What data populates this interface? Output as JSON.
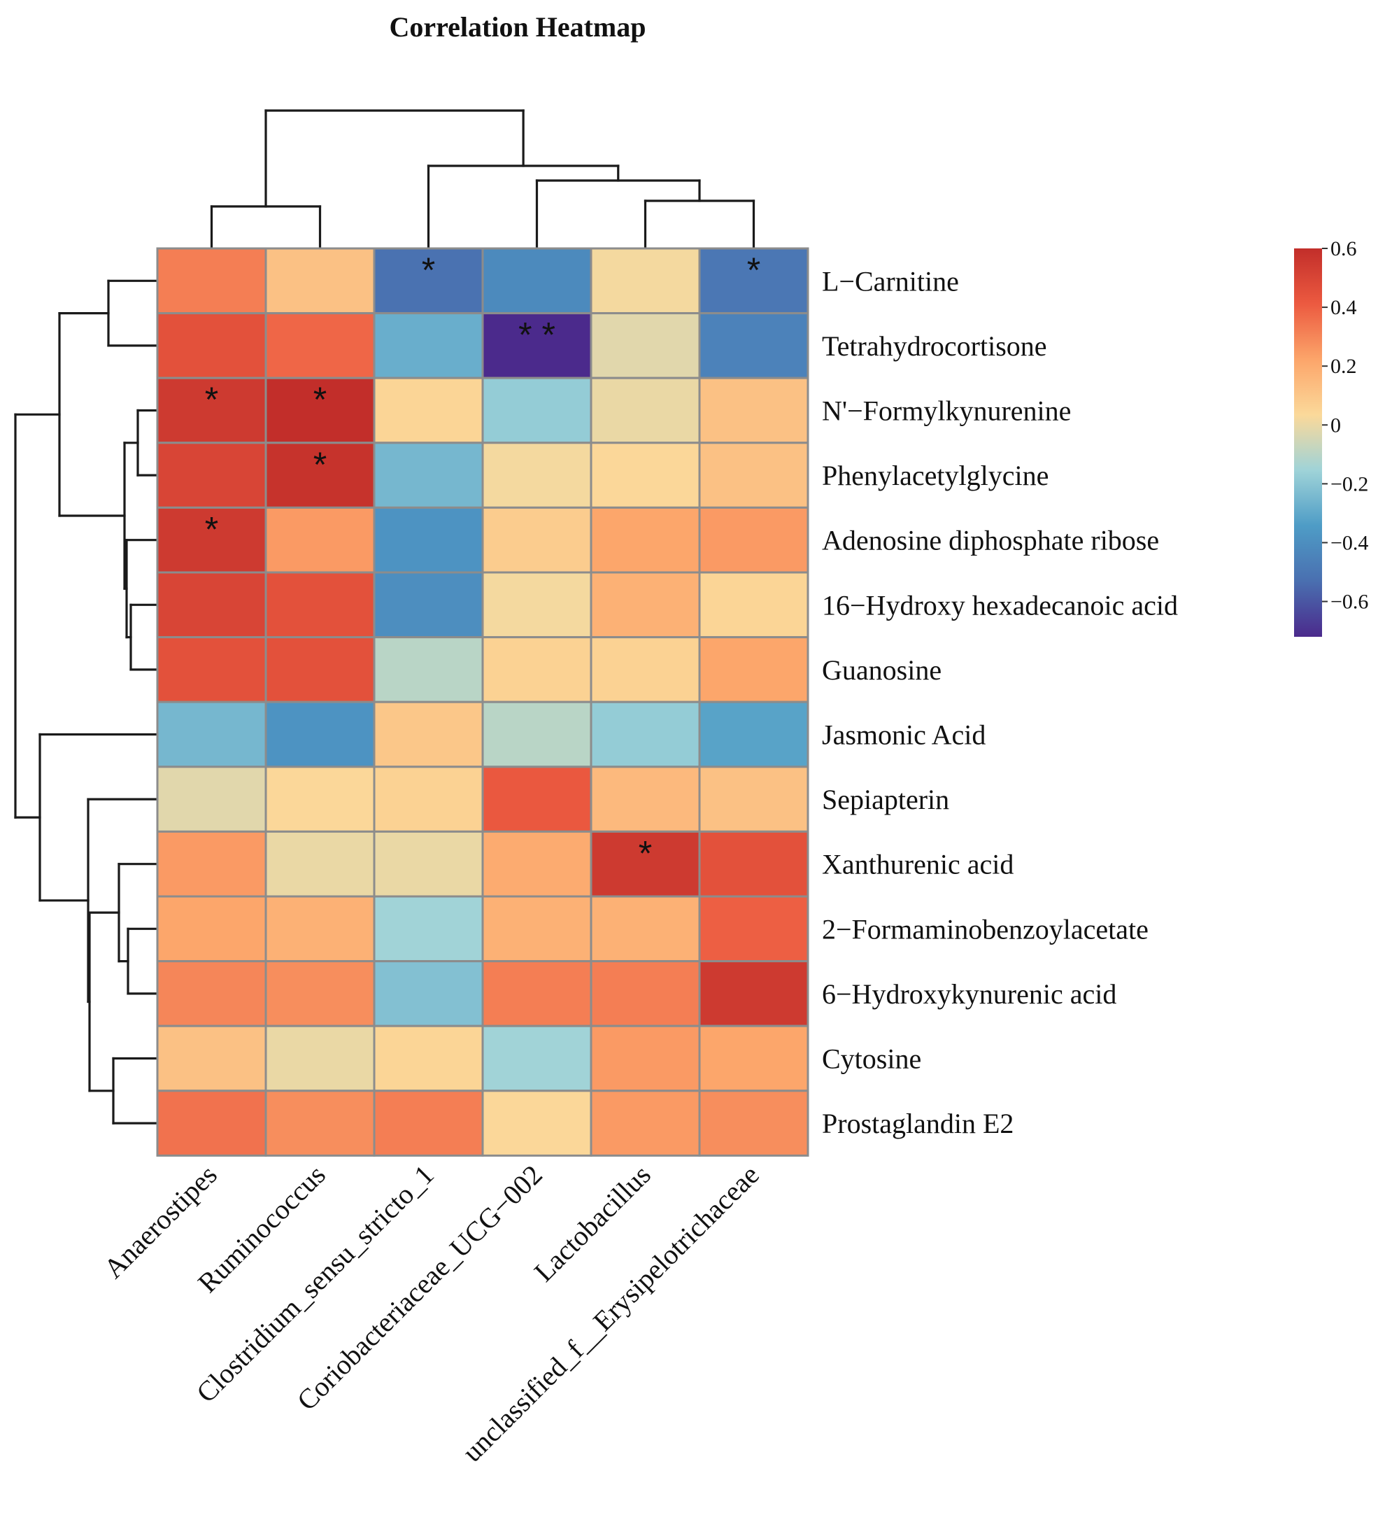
{
  "chart_data": {
    "type": "heatmap",
    "title": "Correlation Heatmap",
    "columns": [
      "Anaerostipes",
      "Ruminococcus",
      "Clostridium_sensu_stricto_1",
      "Coriobacteriaceae_UCG−002",
      "Lactobacillus",
      "unclassified_f__Erysipelotrichaceae"
    ],
    "rows": [
      "L−Carnitine",
      "Tetrahydrocortisone",
      "N'−Formylkynurenine",
      "Phenylacetylglycine",
      "Adenosine diphosphate ribose",
      "16−Hydroxy hexadecanoic acid",
      "Guanosine",
      "Jasmonic Acid",
      "Sepiapterin",
      "Xanthurenic acid",
      "2−Formaminobenzoylacetate",
      "6−Hydroxykynurenic acid",
      "Cytosine",
      "Prostaglandin E2"
    ],
    "values": [
      [
        0.32,
        0.12,
        -0.52,
        -0.42,
        0.02,
        -0.5
      ],
      [
        0.45,
        0.38,
        -0.28,
        -0.72,
        -0.02,
        -0.45
      ],
      [
        0.55,
        0.6,
        0.05,
        -0.18,
        0.0,
        0.12
      ],
      [
        0.5,
        0.58,
        -0.25,
        0.02,
        0.04,
        0.12
      ],
      [
        0.55,
        0.25,
        -0.38,
        0.08,
        0.22,
        0.25
      ],
      [
        0.5,
        0.45,
        -0.4,
        0.02,
        0.18,
        0.05
      ],
      [
        0.45,
        0.45,
        -0.1,
        0.06,
        0.06,
        0.22
      ],
      [
        -0.25,
        -0.38,
        0.1,
        -0.1,
        -0.18,
        -0.32
      ],
      [
        -0.02,
        0.04,
        0.06,
        0.42,
        0.15,
        0.12
      ],
      [
        0.25,
        0.0,
        0.0,
        0.2,
        0.55,
        0.45
      ],
      [
        0.22,
        0.18,
        -0.15,
        0.18,
        0.18,
        0.4
      ],
      [
        0.3,
        0.28,
        -0.22,
        0.32,
        0.32,
        0.55
      ],
      [
        0.12,
        0.0,
        0.05,
        -0.15,
        0.25,
        0.22
      ],
      [
        0.35,
        0.28,
        0.32,
        0.04,
        0.25,
        0.28
      ]
    ],
    "significance": [
      [
        "",
        "",
        "*",
        "",
        "",
        "*"
      ],
      [
        "",
        "",
        "",
        "**",
        "",
        ""
      ],
      [
        "*",
        "*",
        "",
        "",
        "",
        ""
      ],
      [
        "",
        "*",
        "",
        "",
        "",
        ""
      ],
      [
        "*",
        "",
        "",
        "",
        "",
        ""
      ],
      [
        "",
        "",
        "",
        "",
        "",
        ""
      ],
      [
        "",
        "",
        "",
        "",
        "",
        ""
      ],
      [
        "",
        "",
        "",
        "",
        "",
        ""
      ],
      [
        "",
        "",
        "",
        "",
        "",
        ""
      ],
      [
        "",
        "",
        "",
        "",
        "*",
        ""
      ],
      [
        "",
        "",
        "",
        "",
        "",
        ""
      ],
      [
        "",
        "",
        "",
        "",
        "",
        ""
      ],
      [
        "",
        "",
        "",
        "",
        "",
        ""
      ],
      [
        "",
        "",
        "",
        "",
        "",
        ""
      ]
    ],
    "colorbar": {
      "range": [
        -0.72,
        0.6
      ],
      "ticks": [
        0.6,
        0.4,
        0.2,
        0,
        -0.2,
        -0.4,
        -0.6
      ],
      "tick_labels": [
        "0.6",
        "0.4",
        "0.2",
        "0",
        "−0.2",
        "−0.4",
        "−0.6"
      ],
      "colors": [
        "#4b2a8c",
        "#4a6fb0",
        "#4e9cc6",
        "#9fd3d8",
        "#fbd99a",
        "#fca56a",
        "#ec5a40",
        "#c22e2a"
      ]
    },
    "legend": "right"
  }
}
